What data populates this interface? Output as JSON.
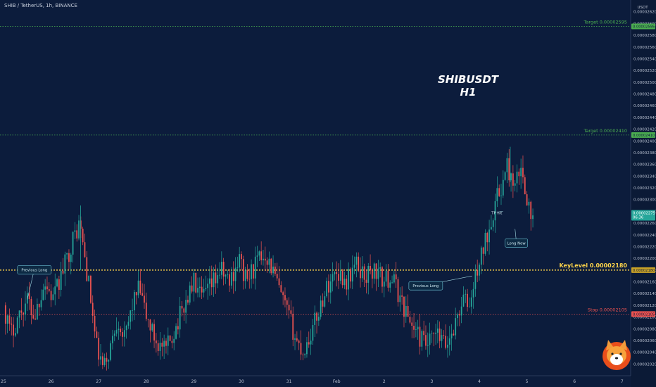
{
  "header": {
    "symbol_line": "SHIB / TetherUS, 1h, BINANCE"
  },
  "watermark": {
    "line1": "SHIBUSDT",
    "line2": "H1"
  },
  "colors": {
    "background": "#0c1c3c",
    "up": "#26a69a",
    "down": "#ef5350",
    "target": "#4caf50",
    "keylevel": "#ffd54a",
    "stop": "#ef5350",
    "price_badge": "#26a69a"
  },
  "chart_data": {
    "type": "candlestick",
    "title": "",
    "x_ticks": [
      "25",
      "26",
      "27",
      "28",
      "29",
      "30",
      "31",
      "Feb",
      "2",
      "3",
      "4",
      "5",
      "6",
      "7"
    ],
    "y_unit": "USDT",
    "ylim": [
      2e-05,
      2.64e-05
    ],
    "y_ticks": [
      2.02e-05,
      2.04e-05,
      2.06e-05,
      2.08e-05,
      2.1e-05,
      2.12e-05,
      2.14e-05,
      2.16e-05,
      2.18e-05,
      2.2e-05,
      2.22e-05,
      2.24e-05,
      2.26e-05,
      2.28e-05,
      2.3e-05,
      2.32e-05,
      2.34e-05,
      2.36e-05,
      2.38e-05,
      2.4e-05,
      2.42e-05,
      2.44e-05,
      2.46e-05,
      2.48e-05,
      2.5e-05,
      2.52e-05,
      2.54e-05,
      2.56e-05,
      2.58e-05,
      2.6e-05,
      2.62e-05
    ],
    "levels": [
      {
        "label": "Target 0.00002595",
        "price": 2.595e-05,
        "badge": "0.00002595",
        "color": "#4caf50"
      },
      {
        "label": "Target 0.00002410",
        "price": 2.41e-05,
        "badge": "0.00002410",
        "color": "#4caf50"
      },
      {
        "label": "KeyLevel 0.00002180",
        "price": 2.18e-05,
        "badge": "0.00002180",
        "color": "#ffd54a"
      },
      {
        "label": "Stop 0.00002105",
        "price": 2.105e-05,
        "badge": "0.00002105",
        "color": "#ef5350"
      }
    ],
    "last_price": {
      "value": "0.00002275",
      "countdown": "06:36",
      "price": 2.275e-05
    },
    "annotations": [
      {
        "text": "Previous Long",
        "anchor_day": 0.5,
        "anchor_price": 2.13e-05
      },
      {
        "text": "Previous Long",
        "anchor_day": 9.85,
        "anchor_price": 2.17e-05
      },
      {
        "text": "TP hit",
        "anchor_day": 10.5,
        "anchor_price": 2.28e-05
      },
      {
        "text": "Long Now",
        "anchor_day": 10.75,
        "anchor_price": 2.25e-05
      }
    ],
    "path": [
      [
        0.0,
        2.12e-05
      ],
      [
        0.15,
        2.07e-05
      ],
      [
        0.3,
        2.1e-05
      ],
      [
        0.5,
        2.13e-05
      ],
      [
        0.65,
        2.1e-05
      ],
      [
        0.85,
        2.16e-05
      ],
      [
        1.05,
        2.13e-05
      ],
      [
        1.25,
        2.18e-05
      ],
      [
        1.45,
        2.23e-05
      ],
      [
        1.6,
        2.26e-05
      ],
      [
        1.8,
        2.15e-05
      ],
      [
        1.95,
        2.05e-05
      ],
      [
        2.1,
        2.01e-05
      ],
      [
        2.25,
        2.05e-05
      ],
      [
        2.4,
        2.1e-05
      ],
      [
        2.55,
        2.06e-05
      ],
      [
        2.7,
        2.12e-05
      ],
      [
        2.85,
        2.15e-05
      ],
      [
        3.0,
        2.1e-05
      ],
      [
        3.2,
        2.06e-05
      ],
      [
        3.4,
        2.04e-05
      ],
      [
        3.6,
        2.08e-05
      ],
      [
        3.8,
        2.12e-05
      ],
      [
        4.0,
        2.16e-05
      ],
      [
        4.15,
        2.13e-05
      ],
      [
        4.35,
        2.15e-05
      ],
      [
        4.55,
        2.18e-05
      ],
      [
        4.75,
        2.16e-05
      ],
      [
        4.95,
        2.2e-05
      ],
      [
        5.1,
        2.16e-05
      ],
      [
        5.3,
        2.19e-05
      ],
      [
        5.5,
        2.21e-05
      ],
      [
        5.7,
        2.17e-05
      ],
      [
        5.85,
        2.13e-05
      ],
      [
        6.0,
        2.1e-05
      ],
      [
        6.15,
        2.06e-05
      ],
      [
        6.3,
        2.04e-05
      ],
      [
        6.5,
        2.08e-05
      ],
      [
        6.7,
        2.13e-05
      ],
      [
        6.85,
        2.16e-05
      ],
      [
        7.0,
        2.18e-05
      ],
      [
        7.2,
        2.16e-05
      ],
      [
        7.4,
        2.19e-05
      ],
      [
        7.6,
        2.17e-05
      ],
      [
        7.8,
        2.18e-05
      ],
      [
        8.0,
        2.16e-05
      ],
      [
        8.15,
        2.17e-05
      ],
      [
        8.3,
        2.14e-05
      ],
      [
        8.5,
        2.1e-05
      ],
      [
        8.7,
        2.07e-05
      ],
      [
        8.9,
        2.05e-05
      ],
      [
        9.1,
        2.07e-05
      ],
      [
        9.3,
        2.05e-05
      ],
      [
        9.5,
        2.09e-05
      ],
      [
        9.65,
        2.13e-05
      ],
      [
        9.8,
        2.12e-05
      ],
      [
        9.95,
        2.18e-05
      ],
      [
        10.1,
        2.22e-05
      ],
      [
        10.25,
        2.27e-05
      ],
      [
        10.4,
        2.31e-05
      ],
      [
        10.5,
        2.33e-05
      ],
      [
        10.6,
        2.36e-05
      ],
      [
        10.72,
        2.31e-05
      ],
      [
        10.85,
        2.35e-05
      ],
      [
        10.95,
        2.33e-05
      ],
      [
        11.05,
        2.28e-05
      ],
      [
        11.15,
        2.26e-05
      ]
    ]
  }
}
